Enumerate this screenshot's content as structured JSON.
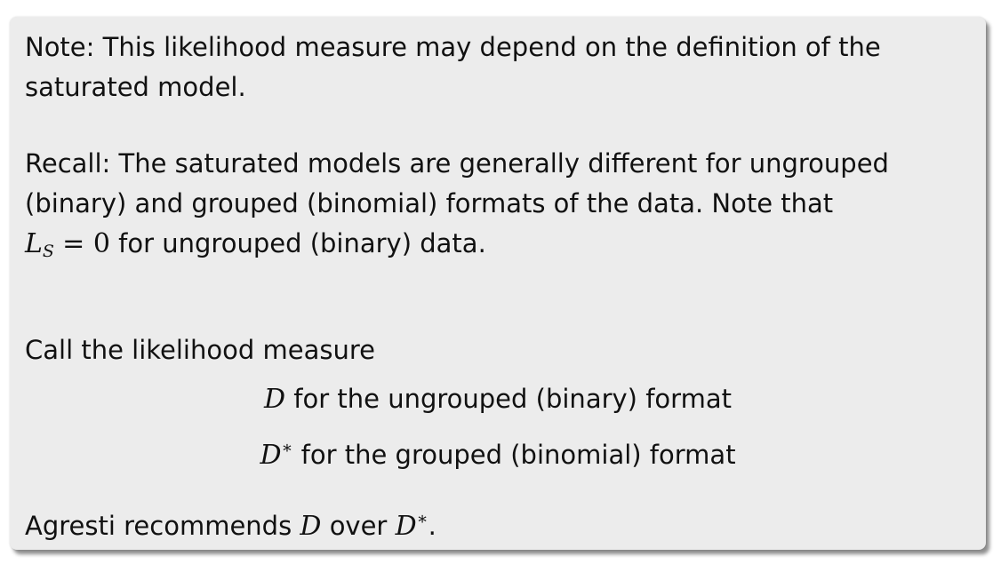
{
  "note": {
    "line1": "Note: This likelihood measure may depend on the definition of the",
    "line2": "saturated model."
  },
  "recall": {
    "line1": "Recall: The saturated models are generally different for ungrouped",
    "line2": "(binary) and grouped (binomial) formats of the data. Note that",
    "line3_math_symbol": "L",
    "line3_math_sub": "S",
    "line3_math_eq": "= 0",
    "line3_rest": "for ungrouped (binary) data."
  },
  "call": {
    "intro": "Call the likelihood measure",
    "item1_symbol": "D",
    "item1_text": "for the ungrouped (binary) format",
    "item2_symbol": "D",
    "item2_sup": "∗",
    "item2_text": "for the grouped (binomial) format"
  },
  "agresti": {
    "prefix": "Agresti recommends",
    "symbol1": "D",
    "middle": "over",
    "symbol2": "D",
    "symbol2_sup": "∗",
    "suffix": "."
  }
}
